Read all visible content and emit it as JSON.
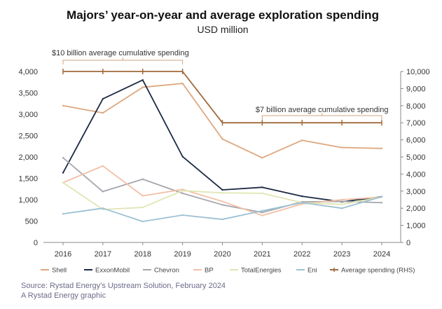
{
  "chart_data": {
    "type": "line",
    "title": "Majors’ year-on-year and average exploration spending",
    "subtitle": "USD million",
    "categories": [
      "2016",
      "2017",
      "2018",
      "2019",
      "2020",
      "2021",
      "2022",
      "2023",
      "2024"
    ],
    "y_left": {
      "min": 0,
      "max": 4000,
      "ticks": [
        "0",
        "500",
        "1,000",
        "1,500",
        "2,000",
        "2,500",
        "3,000",
        "3,500",
        "4,000"
      ]
    },
    "y_right": {
      "min": 0,
      "max": 10000,
      "ticks": [
        "0",
        "1,000",
        "2,000",
        "3,000",
        "4,000",
        "5,000",
        "6,000",
        "7,000",
        "8,000",
        "9,000",
        "10,000"
      ]
    },
    "series": [
      {
        "name": "Shell",
        "color": "#dda77e",
        "axis": "left",
        "values": [
          3200,
          3030,
          3630,
          3720,
          2420,
          1980,
          2390,
          2220,
          2200
        ]
      },
      {
        "name": "ExxonMobil",
        "color": "#1c2a44",
        "axis": "left",
        "values": [
          1630,
          3360,
          3800,
          2010,
          1230,
          1290,
          1080,
          950,
          1070
        ]
      },
      {
        "name": "Chevron",
        "color": "#a6a6ae",
        "axis": "left",
        "values": [
          1980,
          1190,
          1480,
          1150,
          880,
          700,
          950,
          960,
          930
        ]
      },
      {
        "name": "BP",
        "color": "#f2bfa4",
        "axis": "left",
        "values": [
          1400,
          1790,
          1090,
          1240,
          960,
          630,
          900,
          1000,
          1060
        ]
      },
      {
        "name": "TotalEnergies",
        "color": "#dfe6b2",
        "axis": "left",
        "values": [
          1400,
          770,
          820,
          1210,
          1160,
          1150,
          930,
          890,
          1060
        ]
      },
      {
        "name": "Eni",
        "color": "#9cc1d4",
        "axis": "left",
        "values": [
          670,
          800,
          490,
          640,
          540,
          740,
          930,
          800,
          1070
        ]
      },
      {
        "name": "Average spending (RHS)",
        "color": "#a06a3c",
        "axis": "right",
        "values": [
          10000,
          10000,
          10000,
          10000,
          7000,
          7000,
          7000,
          7000,
          7000
        ]
      }
    ],
    "annotations": [
      {
        "text": "$10 billion average cumulative spending",
        "from": "2016",
        "to": "2019"
      },
      {
        "text": "$7 billion average cumulative spending",
        "from": "2021",
        "to": "2024"
      }
    ],
    "legend_position": "bottom",
    "source": "Source: Rystad Energy’s Upstream Solution, February 2024",
    "credit": "A Rystad Energy graphic"
  }
}
